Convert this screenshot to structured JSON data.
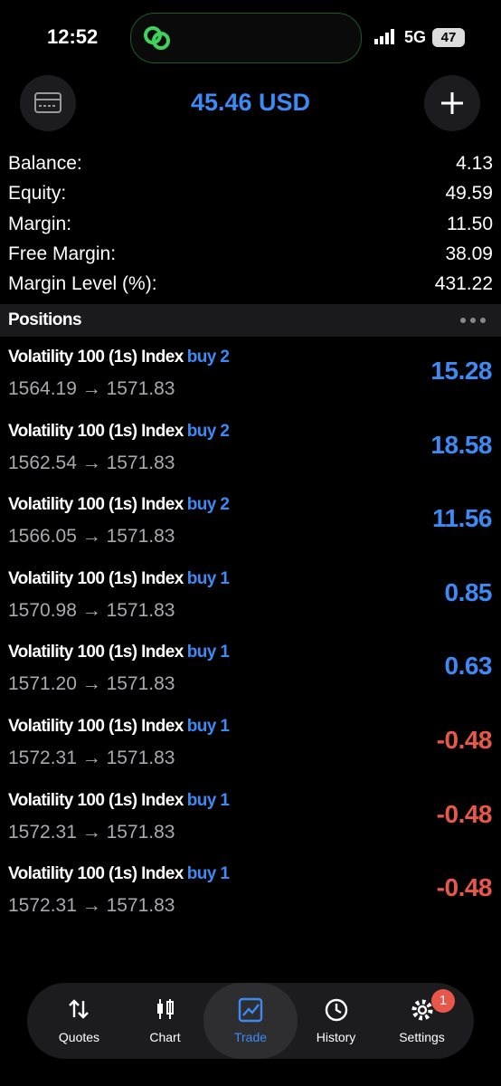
{
  "status_bar": {
    "time": "12:52",
    "network": "5G",
    "battery": "47"
  },
  "header": {
    "title": "45.46 USD"
  },
  "account": [
    {
      "label": "Balance:",
      "value": "4.13"
    },
    {
      "label": "Equity:",
      "value": "49.59"
    },
    {
      "label": "Margin:",
      "value": "11.50"
    },
    {
      "label": "Free Margin:",
      "value": "38.09"
    },
    {
      "label": "Margin Level (%):",
      "value": "431.22"
    }
  ],
  "positions_header": "Positions",
  "positions": [
    {
      "symbol": "Volatility 100 (1s) Index",
      "side": "buy 2",
      "prices": "1564.19 → 1571.83",
      "profit": "15.28"
    },
    {
      "symbol": "Volatility 100 (1s) Index",
      "side": "buy 2",
      "prices": "1562.54 → 1571.83",
      "profit": "18.58"
    },
    {
      "symbol": "Volatility 100 (1s) Index",
      "side": "buy 2",
      "prices": "1566.05 → 1571.83",
      "profit": "11.56"
    },
    {
      "symbol": "Volatility 100 (1s) Index",
      "side": "buy 1",
      "prices": "1570.98 → 1571.83",
      "profit": "0.85"
    },
    {
      "symbol": "Volatility 100 (1s) Index",
      "side": "buy 1",
      "prices": "1571.20 → 1571.83",
      "profit": "0.63"
    },
    {
      "symbol": "Volatility 100 (1s) Index",
      "side": "buy 1",
      "prices": "1572.31 → 1571.83",
      "profit": "-0.48"
    },
    {
      "symbol": "Volatility 100 (1s) Index",
      "side": "buy 1",
      "prices": "1572.31 → 1571.83",
      "profit": "-0.48"
    },
    {
      "symbol": "Volatility 100 (1s) Index",
      "side": "buy 1",
      "prices": "1572.31 → 1571.83",
      "profit": "-0.48"
    }
  ],
  "nav": {
    "items": [
      "Quotes",
      "Chart",
      "Trade",
      "History",
      "Settings"
    ],
    "selected": 2,
    "settings_badge": "1"
  }
}
